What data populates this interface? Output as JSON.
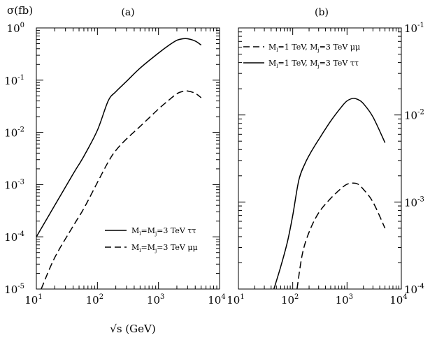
{
  "chart_data": [
    {
      "type": "line",
      "panel_label": "(a)",
      "y_axis_title": "σ(fb)",
      "xlabel": "√s (GeV)",
      "x_scale": "log",
      "y_scale": "log",
      "xlim": [
        10,
        10000
      ],
      "ylim": [
        1e-05,
        1
      ],
      "y_axis_side": "left",
      "grid": false,
      "legend_position": "bottom-right",
      "x_ticks": [
        {
          "base": "10",
          "exp": "1"
        },
        {
          "base": "10",
          "exp": "2"
        },
        {
          "base": "10",
          "exp": "3"
        },
        {
          "base": "10",
          "exp": "4"
        }
      ],
      "y_ticks": [
        {
          "base": "10",
          "exp": "0"
        },
        {
          "base": "10",
          "exp": "-1"
        },
        {
          "base": "10",
          "exp": "-2"
        },
        {
          "base": "10",
          "exp": "-3"
        },
        {
          "base": "10",
          "exp": "-4"
        },
        {
          "base": "10",
          "exp": "-5"
        }
      ],
      "series": [
        {
          "label_parts": {
            "pre": "M",
            "s1": "l",
            "mid": "=M",
            "s2": "j",
            "post": "=3 TeV ττ"
          },
          "style": "solid",
          "x": [
            10,
            20,
            40,
            60,
            100,
            150,
            200,
            300,
            500,
            1000,
            1500,
            2000,
            2500,
            3000,
            4000,
            5000
          ],
          "y": [
            0.0001,
            0.0004,
            0.0016,
            0.0035,
            0.011,
            0.04,
            0.06,
            0.095,
            0.17,
            0.33,
            0.47,
            0.58,
            0.62,
            0.62,
            0.56,
            0.47
          ]
        },
        {
          "label_parts": {
            "pre": "M",
            "s1": "l",
            "mid": "=M",
            "s2": "j",
            "post": "=3 TeV μμ"
          },
          "style": "dashed",
          "x": [
            12,
            20,
            40,
            60,
            100,
            150,
            200,
            300,
            500,
            1000,
            1500,
            2000,
            2500,
            3000,
            4000,
            5000
          ],
          "y": [
            1e-05,
            4e-05,
            0.00016,
            0.00035,
            0.0011,
            0.0027,
            0.0045,
            0.0075,
            0.013,
            0.028,
            0.042,
            0.055,
            0.061,
            0.062,
            0.056,
            0.046
          ]
        }
      ]
    },
    {
      "type": "line",
      "panel_label": "(b)",
      "x_scale": "log",
      "y_scale": "log",
      "xlim": [
        10,
        10000
      ],
      "ylim": [
        0.0001,
        0.1
      ],
      "y_axis_side": "right",
      "grid": false,
      "legend_position": "top-left",
      "x_ticks": [
        {
          "base": "10",
          "exp": "1"
        },
        {
          "base": "10",
          "exp": "2"
        },
        {
          "base": "10",
          "exp": "3"
        },
        {
          "base": "10",
          "exp": "4"
        }
      ],
      "y_ticks": [
        {
          "base": "10",
          "exp": "-1"
        },
        {
          "base": "10",
          "exp": "-2"
        },
        {
          "base": "10",
          "exp": "-3"
        },
        {
          "base": "10",
          "exp": "-4"
        }
      ],
      "series": [
        {
          "label_parts": {
            "pre": "M",
            "s1": "l",
            "mid": "=1 TeV, M",
            "s2": "j",
            "post": "=3 TeV μμ"
          },
          "style": "dashed",
          "x": [
            120,
            150,
            200,
            300,
            500,
            800,
            1000,
            1300,
            1600,
            2000,
            3000,
            5000
          ],
          "y": [
            0.0001,
            0.00025,
            0.00045,
            0.00075,
            0.0011,
            0.00145,
            0.0016,
            0.00165,
            0.0016,
            0.0014,
            0.001,
            0.0005
          ]
        },
        {
          "label_parts": {
            "pre": "M",
            "s1": "l",
            "mid": "=1 TeV, M",
            "s2": "j",
            "post": "=3 TeV ττ"
          },
          "style": "solid",
          "x": [
            45,
            60,
            80,
            100,
            130,
            170,
            220,
            300,
            500,
            800,
            1000,
            1300,
            1600,
            2000,
            3000,
            5000
          ],
          "y": [
            0.0001,
            0.00018,
            0.00035,
            0.0007,
            0.0018,
            0.0028,
            0.0038,
            0.0052,
            0.0085,
            0.0125,
            0.0145,
            0.0155,
            0.015,
            0.0135,
            0.0095,
            0.0048
          ]
        }
      ]
    }
  ]
}
